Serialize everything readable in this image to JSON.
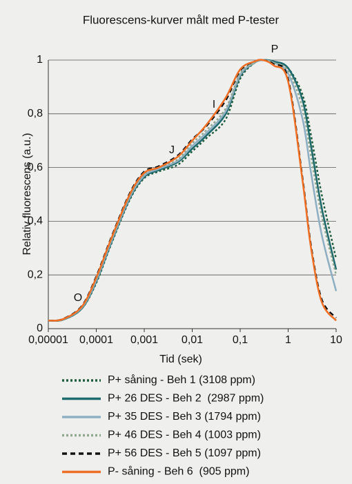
{
  "chart_data": {
    "type": "line",
    "title": "Fluorescens-kurver målt med P-tester",
    "xlabel": "Tid (sek)",
    "ylabel": "Relativ fluorescens (a.u.)",
    "log_x": true,
    "grid": true,
    "annotations": [
      "O",
      "J",
      "I",
      "P"
    ],
    "x": [
      1e-05,
      2e-05,
      5e-05,
      0.0001,
      0.0002,
      0.0005,
      0.001,
      0.002,
      0.005,
      0.01,
      0.02,
      0.05,
      0.1,
      0.2,
      0.3,
      0.5,
      1,
      2,
      3,
      5,
      10
    ],
    "xlim": [
      1e-05,
      10
    ],
    "xticks": [
      {
        "value": 1e-05,
        "label": "0,00001"
      },
      {
        "value": 0.0001,
        "label": "0,0001"
      },
      {
        "value": 0.001,
        "label": "0,001"
      },
      {
        "value": 0.01,
        "label": "0,01"
      },
      {
        "value": 0.1,
        "label": "0,1"
      },
      1,
      10
    ],
    "ylim": [
      0,
      1
    ],
    "yticks": [
      0,
      {
        "value": 0.2,
        "label": "0,2"
      },
      {
        "value": 0.4,
        "label": "0,4"
      },
      {
        "value": 0.6,
        "label": "0,6"
      },
      {
        "value": 0.8,
        "label": "0,8"
      },
      1
    ],
    "series": [
      {
        "name": "P+ såning - Beh 1 (3108 ppm)",
        "color": "#1d5a3c",
        "linestyle": "dotted",
        "values": [
          0.03,
          0.033,
          0.075,
          0.17,
          0.31,
          0.48,
          0.56,
          0.585,
          0.61,
          0.66,
          0.71,
          0.78,
          0.93,
          0.99,
          1.0,
          0.995,
          0.97,
          0.87,
          0.72,
          0.5,
          0.26
        ]
      },
      {
        "name": "P+ 26 DES - Beh 2  (2987 ppm)",
        "color": "#1e6a6c",
        "linestyle": "solid",
        "values": [
          0.03,
          0.033,
          0.075,
          0.175,
          0.315,
          0.485,
          0.565,
          0.59,
          0.62,
          0.67,
          0.72,
          0.8,
          0.94,
          0.99,
          1.0,
          0.995,
          0.97,
          0.85,
          0.68,
          0.45,
          0.22
        ]
      },
      {
        "name": "P+ 35 DES - Beh 3 (1794 ppm)",
        "color": "#8fb0c3",
        "linestyle": "solid",
        "values": [
          0.03,
          0.034,
          0.078,
          0.18,
          0.32,
          0.49,
          0.57,
          0.595,
          0.625,
          0.68,
          0.73,
          0.81,
          0.945,
          0.99,
          1.0,
          0.99,
          0.95,
          0.78,
          0.58,
          0.35,
          0.14
        ]
      },
      {
        "name": "P+ 46 DES - Beh 4 (1003 ppm)",
        "color": "#8ea78e",
        "linestyle": "dotted",
        "values": [
          0.03,
          0.034,
          0.08,
          0.185,
          0.325,
          0.495,
          0.575,
          0.6,
          0.63,
          0.69,
          0.74,
          0.82,
          0.95,
          0.99,
          1.0,
          0.99,
          0.96,
          0.82,
          0.64,
          0.42,
          0.2
        ]
      },
      {
        "name": "P+ 56 DES - Beh 5 (1097 ppm)",
        "color": "#111111",
        "linestyle": "dashed",
        "values": [
          0.03,
          0.036,
          0.085,
          0.195,
          0.335,
          0.505,
          0.585,
          0.605,
          0.645,
          0.705,
          0.755,
          0.85,
          0.96,
          0.995,
          1.0,
          0.985,
          0.93,
          0.56,
          0.31,
          0.11,
          0.04
        ]
      },
      {
        "name": "P- såning - Beh 6  (905 ppm)",
        "color": "#ee6f26",
        "linestyle": "solid",
        "values": [
          0.03,
          0.035,
          0.082,
          0.19,
          0.33,
          0.5,
          0.58,
          0.6,
          0.64,
          0.7,
          0.76,
          0.86,
          0.965,
          0.995,
          1.0,
          0.98,
          0.92,
          0.55,
          0.3,
          0.1,
          0.03
        ]
      }
    ]
  }
}
